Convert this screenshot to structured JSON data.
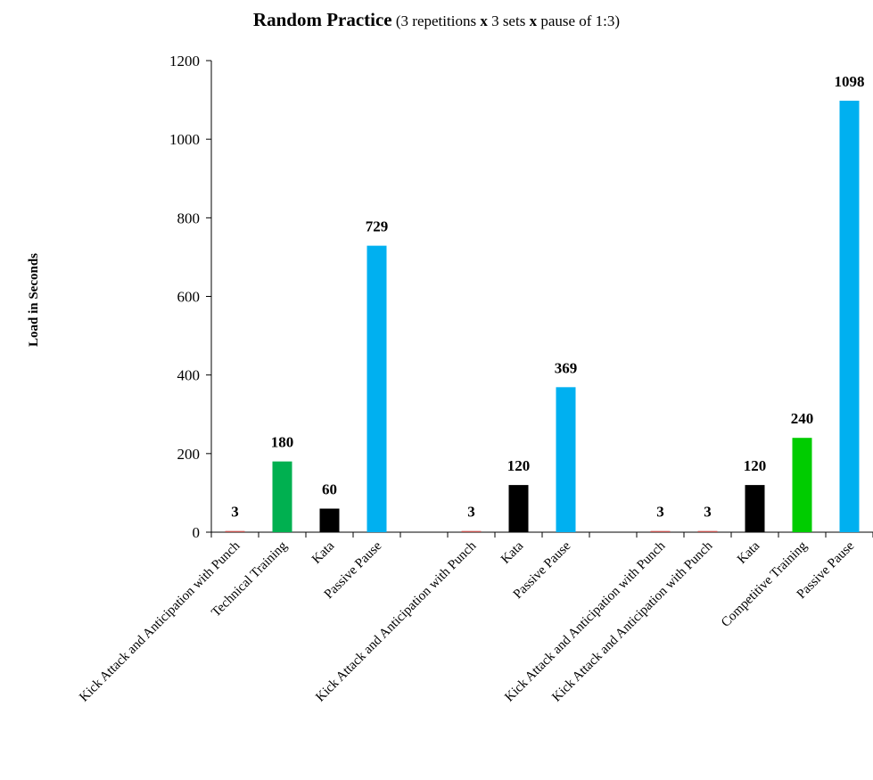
{
  "chart_data": {
    "type": "bar",
    "title": "Random Practice",
    "subtitle_parts": [
      "(3 repetitions ",
      "x",
      " 3 sets ",
      "x",
      " pause of 1:3)"
    ],
    "xlabel": "",
    "ylabel": "Load in Seconds",
    "ylim": [
      0,
      1200
    ],
    "yticks": [
      0,
      200,
      400,
      600,
      800,
      1000,
      1200
    ],
    "grid": false,
    "legend": "none",
    "bars": [
      {
        "category": "Kick Attack and Anticipation with Punch",
        "value": 3,
        "color": "#c0504d",
        "label": "3"
      },
      {
        "category": "Technical Training",
        "value": 180,
        "color": "#00b050",
        "label": "180"
      },
      {
        "category": "Kata",
        "value": 60,
        "color": "#000000",
        "label": "60"
      },
      {
        "category": "Passive Pause",
        "value": 729,
        "color": "#00b0f0",
        "label": "729"
      },
      {
        "category": "",
        "value": null,
        "color": null,
        "label": ""
      },
      {
        "category": "Kick Attack and Anticipation with Punch",
        "value": 3,
        "color": "#c0504d",
        "label": "3"
      },
      {
        "category": "Kata",
        "value": 120,
        "color": "#000000",
        "label": "120"
      },
      {
        "category": "Passive Pause",
        "value": 369,
        "color": "#00b0f0",
        "label": "369"
      },
      {
        "category": "",
        "value": null,
        "color": null,
        "label": ""
      },
      {
        "category": "Kick Attack and Anticipation with Punch",
        "value": 3,
        "color": "#c0504d",
        "label": "3"
      },
      {
        "category": "Kick Attack and Anticipation with Punch",
        "value": 3,
        "color": "#c0504d",
        "label": "3"
      },
      {
        "category": "Kata",
        "value": 120,
        "color": "#000000",
        "label": "120"
      },
      {
        "category": "Competitive Training",
        "value": 240,
        "color": "#00cc00",
        "label": "240"
      },
      {
        "category": "Passive Pause",
        "value": 1098,
        "color": "#00b0f0",
        "label": "1098"
      }
    ]
  }
}
